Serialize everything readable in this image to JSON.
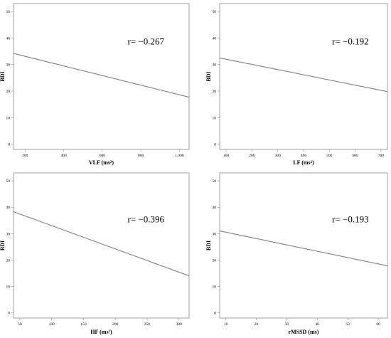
{
  "chart_data": [
    {
      "type": "line",
      "xlabel": "VLF (ms²)",
      "ylabel": "BDI",
      "annotation": "r= −0.267",
      "xlim": [
        140,
        1050
      ],
      "ylim": [
        -2,
        53
      ],
      "x_ticks": [
        200,
        400,
        600,
        800,
        1000
      ],
      "x_tick_labels": [
        "200",
        "400",
        "600",
        "800",
        "1,000"
      ],
      "y_ticks": [
        0,
        10,
        20,
        30,
        40,
        50
      ],
      "y_tick_labels": [
        "0",
        "10",
        "20",
        "30",
        "40",
        "50"
      ],
      "grid": false,
      "series": [
        {
          "x": [
            140,
            1050
          ],
          "y": [
            34.2,
            17.7
          ]
        }
      ]
    },
    {
      "type": "line",
      "xlabel": "LF (ms²)",
      "ylabel": "BDI",
      "annotation": "r= −0.192",
      "xlim": [
        75,
        725
      ],
      "ylim": [
        -2,
        53
      ],
      "x_ticks": [
        100,
        200,
        300,
        400,
        500,
        600,
        700
      ],
      "x_tick_labels": [
        "100",
        "200",
        "300",
        "400",
        "500",
        "600",
        "700"
      ],
      "y_ticks": [
        0,
        10,
        20,
        30,
        40,
        50
      ],
      "y_tick_labels": [
        "0",
        "10",
        "20",
        "30",
        "40",
        "50"
      ],
      "grid": false,
      "series": [
        {
          "x": [
            75,
            725
          ],
          "y": [
            32.5,
            19.8
          ]
        }
      ]
    },
    {
      "type": "line",
      "xlabel": "HF (ms²)",
      "ylabel": "BDI",
      "annotation": "r= −0.396",
      "xlim": [
        40,
        316
      ],
      "ylim": [
        -2,
        53
      ],
      "x_ticks": [
        50,
        100,
        150,
        200,
        250,
        300
      ],
      "x_tick_labels": [
        "50",
        "100",
        "150",
        "200",
        "250",
        "300"
      ],
      "y_ticks": [
        0,
        10,
        20,
        30,
        40,
        50
      ],
      "y_tick_labels": [
        "0",
        "10",
        "20",
        "30",
        "40",
        "50"
      ],
      "grid": false,
      "series": [
        {
          "x": [
            40,
            316
          ],
          "y": [
            38.3,
            14.0
          ]
        }
      ]
    },
    {
      "type": "line",
      "xlabel": "rMSSD (ms)",
      "ylabel": "BDI",
      "annotation": "r= −0.193",
      "xlim": [
        8,
        63
      ],
      "ylim": [
        -2,
        53
      ],
      "x_ticks": [
        10,
        20,
        30,
        40,
        50,
        60
      ],
      "x_tick_labels": [
        "10",
        "20",
        "30",
        "40",
        "50",
        "60"
      ],
      "y_ticks": [
        0,
        10,
        20,
        30,
        40,
        50
      ],
      "y_tick_labels": [
        "0",
        "10",
        "20",
        "30",
        "40",
        "50"
      ],
      "grid": false,
      "series": [
        {
          "x": [
            8,
            63
          ],
          "y": [
            31.0,
            17.8
          ]
        }
      ]
    }
  ],
  "colors": {
    "frame": "#8a8a8a",
    "line": "#7f7f7f",
    "text": "#000000",
    "background": "#ffffff"
  }
}
